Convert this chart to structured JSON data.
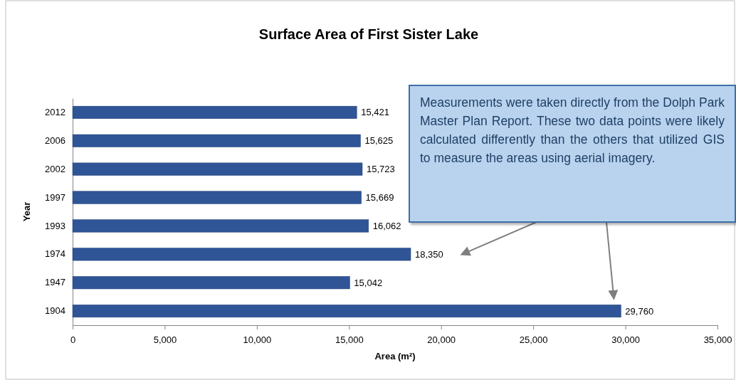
{
  "chart_data": {
    "type": "bar",
    "orientation": "horizontal",
    "title": "Surface Area of First Sister Lake",
    "xlabel": "Area (m²)",
    "ylabel": "Year",
    "categories": [
      "2012",
      "2006",
      "2002",
      "1997",
      "1993",
      "1974",
      "1947",
      "1904"
    ],
    "values": [
      15421,
      15625,
      15723,
      15669,
      16062,
      18350,
      15042,
      29760
    ],
    "value_labels": [
      "15,421",
      "15,625",
      "15,723",
      "15,669",
      "16,062",
      "18,350",
      "15,042",
      "29,760"
    ],
    "color": "#2f5597",
    "grid": false,
    "xlim": [
      0,
      35000
    ],
    "xticks": [
      0,
      {
        "value": 5000,
        "label": "5,000"
      },
      {
        "value": 10000,
        "label": "10,000"
      },
      {
        "value": 15000,
        "label": "15,000"
      },
      {
        "value": 20000,
        "label": "20,000"
      },
      {
        "value": 25000,
        "label": "25,000"
      },
      {
        "value": 30000,
        "label": "30,000"
      },
      {
        "value": 35000,
        "label": "35,000"
      }
    ],
    "annotations": [
      "Measurements were taken directly from the Dolph Park Master Plan Report. These two data points were likely calculated differently than the others that utilized GIS to measure the areas using aerial imagery."
    ]
  }
}
